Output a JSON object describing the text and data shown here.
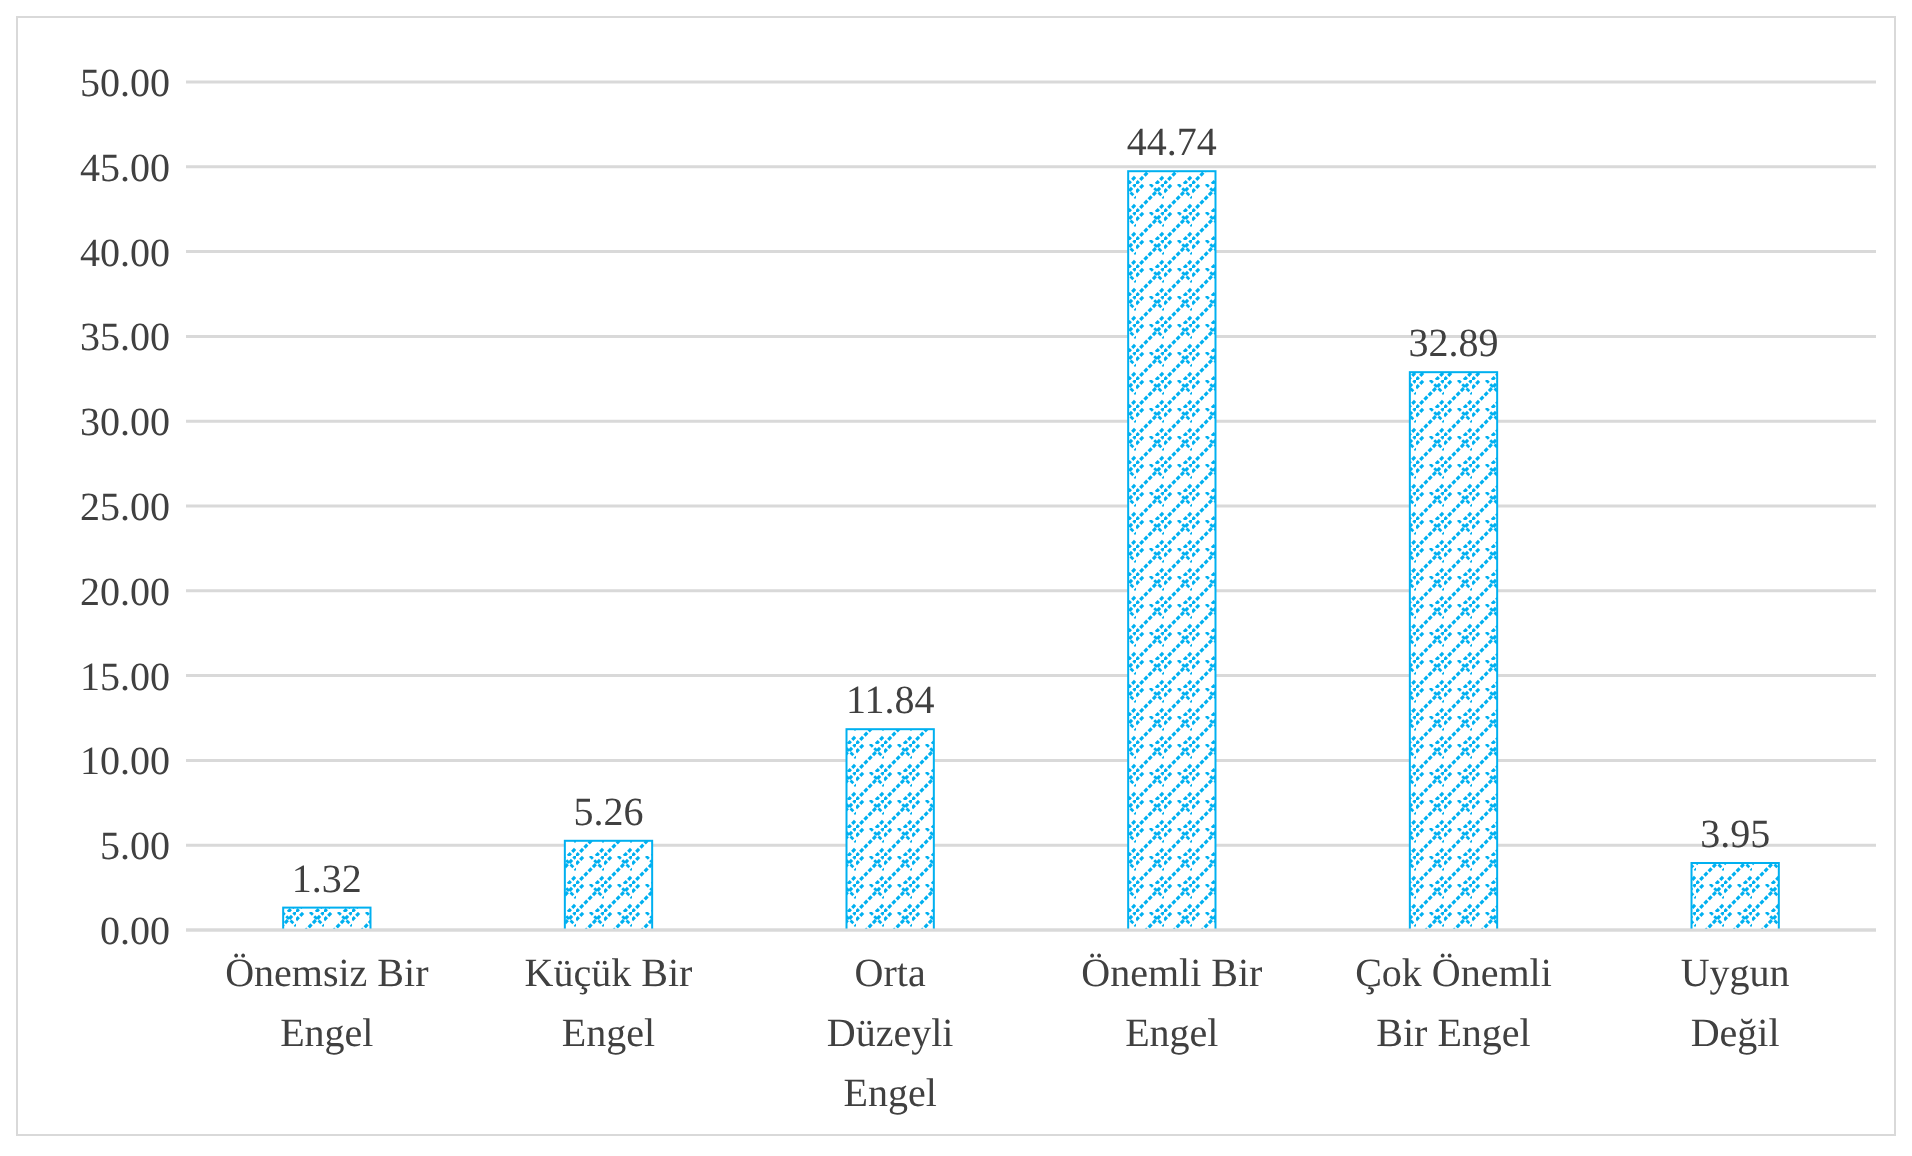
{
  "chart_data": {
    "type": "bar",
    "categories": [
      "Önemsiz Bir Engel",
      "Küçük Bir Engel",
      "Orta Düzeyli Engel",
      "Önemli Bir Engel",
      "Çok Önemli Bir Engel",
      "Uygun Değil"
    ],
    "values": [
      1.32,
      5.26,
      11.84,
      44.74,
      32.89,
      3.95
    ],
    "color": "#00b0f0",
    "ylim": [
      0,
      50
    ],
    "yticks": [
      {
        "value": 0,
        "label": "0.00"
      },
      {
        "value": 5,
        "label": "5.00"
      },
      {
        "value": 10,
        "label": "10.00"
      },
      {
        "value": 15,
        "label": "15.00"
      },
      {
        "value": 20,
        "label": "20.00"
      },
      {
        "value": 25,
        "label": "25.00"
      },
      {
        "value": 30,
        "label": "30.00"
      },
      {
        "value": 35,
        "label": "35.00"
      },
      {
        "value": 40,
        "label": "40.00"
      },
      {
        "value": 45,
        "label": "45.00"
      },
      {
        "value": 50,
        "label": "50.00"
      }
    ],
    "grid": "y",
    "data_labels": true
  }
}
